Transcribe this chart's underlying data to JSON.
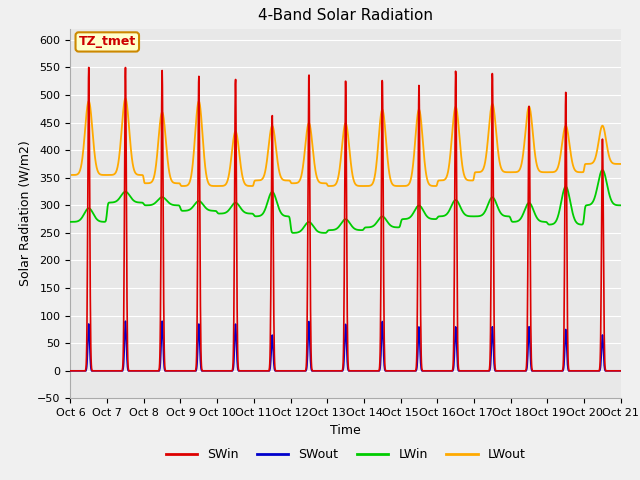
{
  "title": "4-Band Solar Radiation",
  "xlabel": "Time",
  "ylabel": "Solar Radiation (W/m2)",
  "ylim": [
    -50,
    620
  ],
  "colors": {
    "SWin": "#dd0000",
    "SWout": "#0000cc",
    "LWin": "#00cc00",
    "LWout": "#ffaa00"
  },
  "tick_labels": [
    "Oct 6",
    "Oct 7",
    "Oct 8",
    "Oct 9",
    "Oct 10",
    "Oct 11",
    "Oct 12",
    "Oct 13",
    "Oct 14",
    "Oct 15",
    "Oct 16",
    "Oct 17",
    "Oct 18",
    "Oct 19",
    "Oct 20",
    "Oct 21"
  ],
  "n_days": 15,
  "pts_per_day": 144,
  "annotation_text": "TZ_tmet",
  "annotation_bg": "#ffffcc",
  "annotation_border": "#cc8800",
  "peaks_SWin": [
    550,
    550,
    545,
    535,
    530,
    465,
    540,
    530,
    530,
    520,
    545,
    540,
    480,
    505,
    420
  ],
  "peaks_SWout": [
    85,
    90,
    90,
    85,
    85,
    65,
    90,
    85,
    90,
    80,
    80,
    80,
    80,
    75,
    65
  ],
  "base_LWin": [
    270,
    305,
    300,
    290,
    285,
    280,
    250,
    255,
    260,
    275,
    280,
    280,
    270,
    265,
    300
  ],
  "bumps_LWin": [
    25,
    20,
    15,
    18,
    20,
    45,
    20,
    20,
    20,
    25,
    30,
    35,
    35,
    70,
    65
  ],
  "base_LWout": [
    355,
    355,
    340,
    335,
    335,
    345,
    340,
    335,
    335,
    335,
    345,
    360,
    360,
    360,
    375
  ],
  "peaks_LWout": [
    490,
    495,
    470,
    490,
    435,
    445,
    450,
    450,
    475,
    475,
    480,
    485,
    480,
    445,
    445
  ],
  "title_fontsize": 11,
  "label_fontsize": 9,
  "tick_fontsize": 8,
  "legend_fontsize": 9,
  "fig_bg": "#f0f0f0",
  "plot_bg": "#e8e8e8"
}
